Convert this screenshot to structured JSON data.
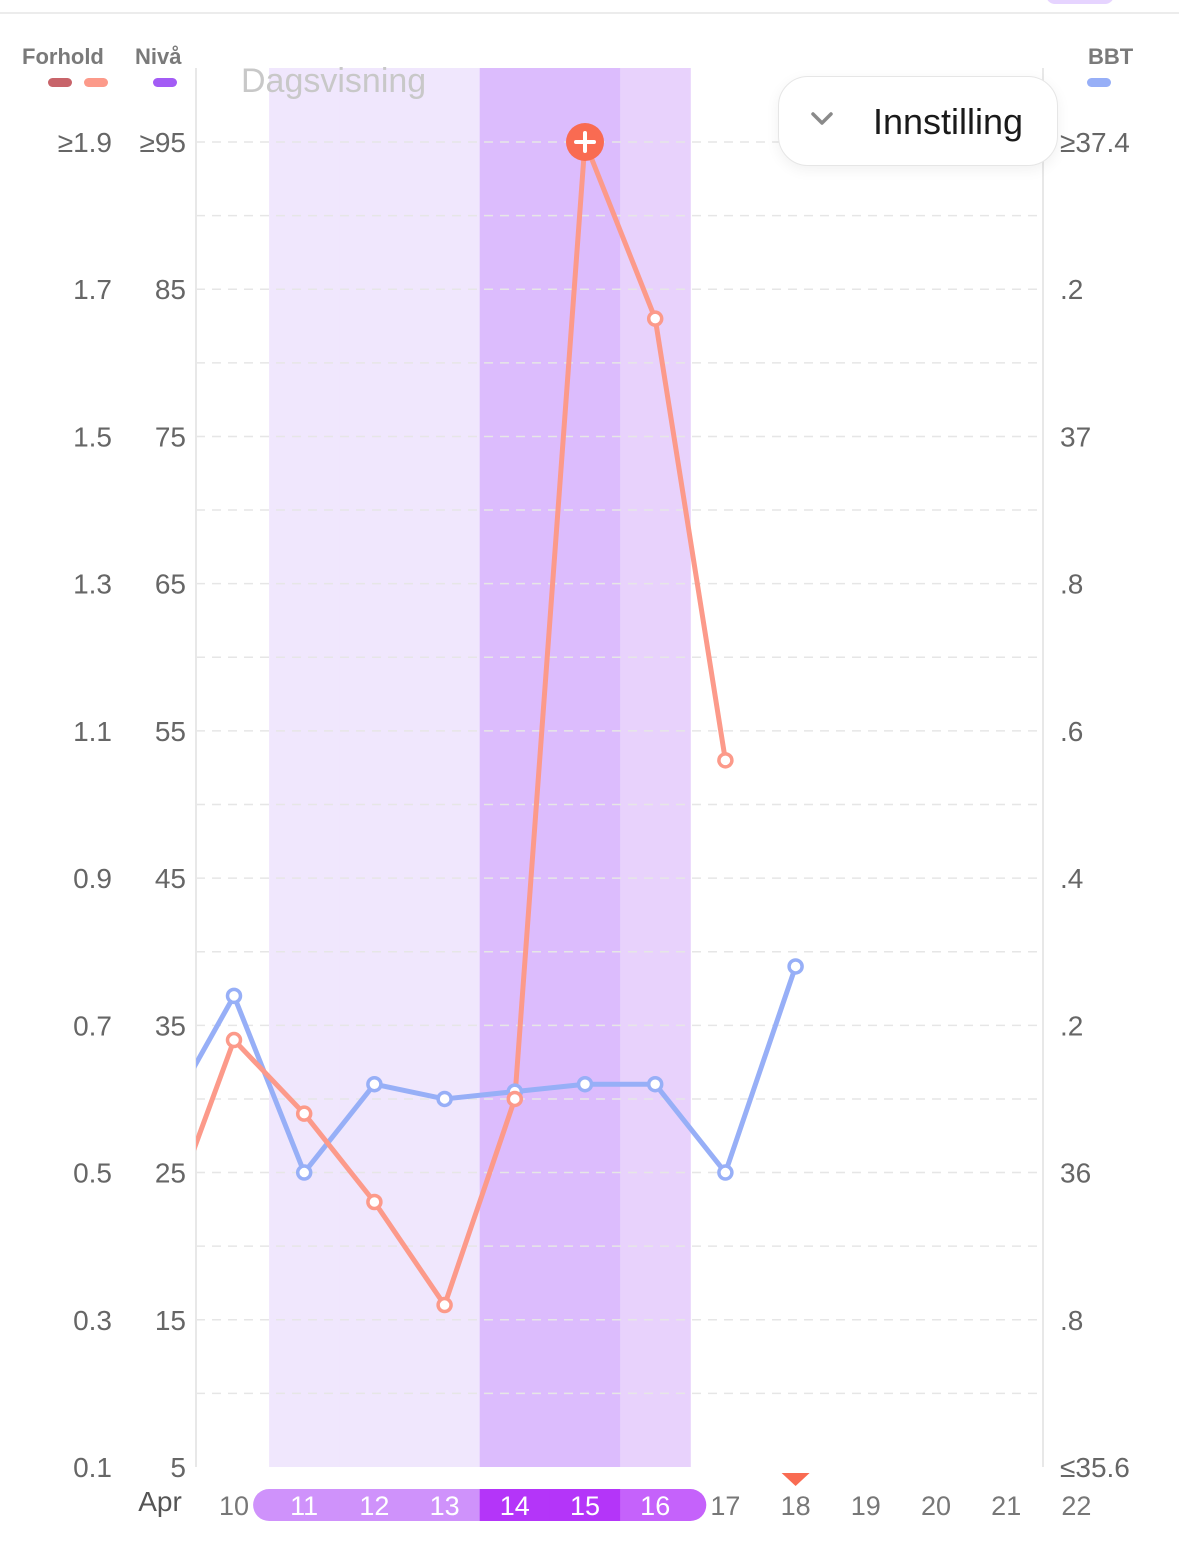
{
  "view_label": "Dagsvisning",
  "settings_button": {
    "label": "Innstilling",
    "icon": "chevron-down-icon"
  },
  "legend": {
    "left": [
      {
        "label": "Forhold",
        "colors": [
          "#c8646a",
          "#fc9a8a"
        ]
      },
      {
        "label": "Nivå",
        "colors": [
          "#a35cf5"
        ]
      }
    ],
    "right": {
      "label": "BBT",
      "colors": [
        "#97aff7"
      ]
    }
  },
  "colors": {
    "ratio_line": "#fc9a8a",
    "bbt_line": "#97aff7",
    "band_light": "#f0e7fd",
    "band_dark": "#dcbcfd",
    "band_mid": "#e8d2fc",
    "pill_light": "#cf92fb",
    "pill_dark": "#b435f9",
    "pill_mid": "#c562fb",
    "today_marker": "#f96b52",
    "peak_marker": "#f96b52",
    "grid": "#e6e6e6",
    "axis_text": "#666666"
  },
  "chart_data": {
    "type": "line",
    "title": "",
    "x_month": "Apr",
    "x": [
      "10",
      "11",
      "12",
      "13",
      "14",
      "15",
      "16",
      "17",
      "18",
      "19",
      "20",
      "21",
      "22"
    ],
    "highlighted_days": [
      "11",
      "12",
      "13",
      "14",
      "15",
      "16"
    ],
    "peak_days": [
      "14",
      "15"
    ],
    "today_marker": "18",
    "y_left_ratio": {
      "ticks": [
        "≥1.9",
        "1.7",
        "1.5",
        "1.3",
        "1.1",
        "0.9",
        "0.7",
        "0.5",
        "0.3",
        "0.1"
      ],
      "range": [
        0.1,
        1.9
      ]
    },
    "y_left_level": {
      "ticks": [
        "≥95",
        "85",
        "75",
        "65",
        "55",
        "45",
        "35",
        "25",
        "15",
        "5"
      ],
      "range": [
        5,
        95
      ]
    },
    "y_right_bbt": {
      "ticks": [
        "≥37.4",
        ".2",
        "37",
        ".8",
        ".6",
        ".4",
        ".2",
        "36",
        ".8",
        "≤35.6"
      ],
      "range": [
        35.6,
        37.4
      ]
    },
    "grid": true,
    "series": [
      {
        "name": "Forhold",
        "axis": "level",
        "values": [
          {
            "x": "9",
            "y": 21
          },
          {
            "x": "10",
            "y": 34
          },
          {
            "x": "11",
            "y": 29
          },
          {
            "x": "12",
            "y": 23
          },
          {
            "x": "13",
            "y": 16
          },
          {
            "x": "14",
            "y": 30
          },
          {
            "x": "15",
            "y": 95,
            "marker": "peak"
          },
          {
            "x": "16",
            "y": 83
          },
          {
            "x": "17",
            "y": 53
          }
        ]
      },
      {
        "name": "BBT",
        "axis": "bbt",
        "values": [
          {
            "x": "9",
            "y": 36.07
          },
          {
            "x": "10",
            "y": 36.24
          },
          {
            "x": "11",
            "y": 36.0
          },
          {
            "x": "12",
            "y": 36.12
          },
          {
            "x": "13",
            "y": 36.1
          },
          {
            "x": "14",
            "y": 36.11
          },
          {
            "x": "15",
            "y": 36.12
          },
          {
            "x": "16",
            "y": 36.12
          },
          {
            "x": "17",
            "y": 36.0
          },
          {
            "x": "18",
            "y": 36.28
          }
        ]
      }
    ]
  }
}
